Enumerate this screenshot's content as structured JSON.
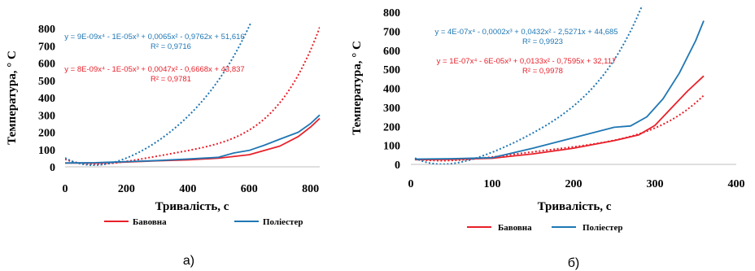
{
  "colors": {
    "cotton": "#e8212b",
    "polyester": "#1f77b4",
    "grid": "#d9d9d9"
  },
  "chart_data": [
    {
      "panel_label": "а)",
      "type": "line",
      "xlabel": "Тривалість, с",
      "ylabel": "Температура, ° С",
      "xlim": [
        0,
        830
      ],
      "ylim": [
        0,
        800
      ],
      "xticks": [
        0,
        200,
        400,
        600,
        800
      ],
      "xtick_labels": [
        "0",
        "200",
        "400",
        "600",
        "800"
      ],
      "yticks": [
        0,
        100,
        200,
        300,
        400,
        500,
        600,
        700,
        800
      ],
      "ytick_labels": [
        "0",
        "100",
        "200",
        "300",
        "400",
        "500",
        "600",
        "700",
        "800"
      ],
      "grid": false,
      "legend_position": "bottom",
      "series": [
        {
          "name": "Бавовна",
          "color": "#e8212b",
          "x": [
            0,
            100,
            200,
            300,
            400,
            500,
            600,
            700,
            760,
            800,
            830
          ],
          "y": [
            22,
            22,
            28,
            35,
            40,
            50,
            70,
            120,
            175,
            230,
            280
          ],
          "trend": {
            "coefficients": [
              8e-09,
              -1e-05,
              0.0047,
              -0.6668,
              43.837
            ],
            "equation": "y = 8E-09x⁴ - 1E-05x³ + 0,0047x² - 0,6668x + 43,837",
            "r2": "R² = 0,9781"
          }
        },
        {
          "name": "Поліестер",
          "color": "#1f77b4",
          "x": [
            0,
            100,
            200,
            300,
            400,
            500,
            550,
            600,
            650,
            700,
            760,
            800,
            830
          ],
          "y": [
            22,
            24,
            30,
            36,
            45,
            55,
            80,
            95,
            125,
            160,
            200,
            250,
            300
          ],
          "trend": {
            "coefficients": [
              9e-09,
              -1e-05,
              0.0065,
              -0.9762,
              51.616
            ],
            "equation": "y = 9E-09x⁴ - 1E-05x³ + 0,0065x² - 0,9762x + 51,616",
            "r2": "R² = 0,9716"
          }
        }
      ]
    },
    {
      "panel_label": "б)",
      "type": "line",
      "xlabel": "Тривалість, с",
      "ylabel": "Температура, ° С",
      "xlim": [
        0,
        400
      ],
      "ylim": [
        0,
        800
      ],
      "xticks": [
        0,
        100,
        200,
        300,
        400
      ],
      "xtick_labels": [
        "0",
        "100",
        "200",
        "300",
        "400"
      ],
      "yticks": [
        0,
        100,
        200,
        300,
        400,
        500,
        600,
        700,
        800
      ],
      "ytick_labels": [
        "0",
        "100",
        "200",
        "300",
        "400",
        "500",
        "600",
        "700",
        "800"
      ],
      "grid": false,
      "legend_position": "bottom",
      "series": [
        {
          "name": "Бавовна",
          "color": "#e8212b",
          "x": [
            5,
            50,
            100,
            150,
            200,
            250,
            280,
            300,
            320,
            340,
            360
          ],
          "y": [
            25,
            26,
            32,
            55,
            85,
            125,
            155,
            205,
            295,
            385,
            465
          ],
          "trend": {
            "coefficients": [
              1e-07,
              -6e-05,
              0.0133,
              -0.7595,
              32.117
            ],
            "equation": "y = 1E-07x⁴ - 6E-05x³ + 0,0133x² - 0,7595x + 32,117",
            "r2": "R² = 0,9978"
          }
        },
        {
          "name": "Поліестер",
          "color": "#1f77b4",
          "x": [
            5,
            50,
            100,
            150,
            200,
            250,
            270,
            290,
            310,
            330,
            350,
            360
          ],
          "y": [
            28,
            30,
            35,
            85,
            140,
            195,
            202,
            250,
            345,
            480,
            650,
            755
          ],
          "trend": {
            "coefficients": [
              4e-07,
              -0.0002,
              0.0432,
              -2.5271,
              44.685
            ],
            "equation": "y = 4E-07x⁴ - 0,0002x³ + 0,0432x² - 2,5271x + 44,685",
            "r2": "R² = 0,9923"
          }
        }
      ]
    }
  ]
}
